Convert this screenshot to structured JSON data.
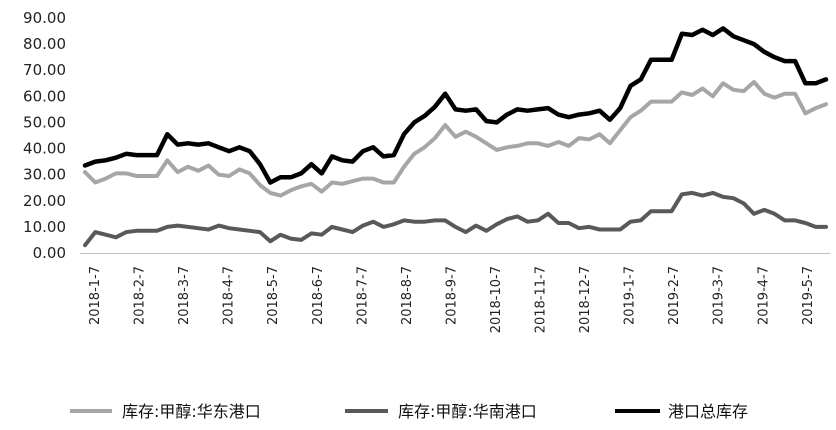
{
  "chart_data": {
    "type": "line",
    "ylim": [
      0,
      90
    ],
    "y_ticks": [
      "0.00",
      "10.00",
      "20.00",
      "30.00",
      "40.00",
      "50.00",
      "60.00",
      "70.00",
      "80.00",
      "90.00"
    ],
    "x_ticks": [
      "2018-1-7",
      "2018-2-7",
      "2018-3-7",
      "2018-4-7",
      "2018-5-7",
      "2018-6-7",
      "2018-7-7",
      "2018-8-7",
      "2018-9-7",
      "2018-10-7",
      "2018-11-7",
      "2018-12-7",
      "2019-1-7",
      "2019-2-7",
      "2019-3-7",
      "2019-4-7",
      "2019-5-7"
    ],
    "grid": false,
    "legend_position": "bottom",
    "series": [
      {
        "name": "库存:甲醇:华东港口",
        "color": "#a6a6a6",
        "values": [
          31,
          27,
          28.5,
          30.5,
          30.5,
          29.5,
          29.5,
          29.5,
          35.5,
          31,
          33,
          31.5,
          33.5,
          30,
          29.5,
          32,
          30.5,
          26,
          23,
          22,
          24,
          25.5,
          26.5,
          23.5,
          27,
          26.5,
          27.5,
          28.5,
          28.5,
          27,
          27,
          33,
          38,
          40.5,
          44,
          49,
          44.5,
          46.5,
          44.5,
          42,
          39.5,
          40.5,
          41,
          42,
          42,
          41,
          42.5,
          41,
          44,
          43.5,
          45.5,
          42,
          47,
          52,
          54.5,
          58,
          58,
          58,
          61.5,
          60.5,
          63,
          60,
          65,
          62.5,
          62,
          65.5,
          61,
          59.5,
          61,
          61,
          53.5,
          55.5,
          57
        ]
      },
      {
        "name": "库存:甲醇:华南港口",
        "color": "#595959",
        "values": [
          3,
          8,
          7,
          6,
          8,
          8.5,
          8.5,
          8.5,
          10,
          10.5,
          10,
          9.5,
          9,
          10.5,
          9.5,
          9,
          8.5,
          8,
          4.5,
          7,
          5.5,
          5,
          7.5,
          7,
          10,
          9,
          8,
          10.5,
          12,
          10,
          11,
          12.5,
          12,
          12,
          12.5,
          12.5,
          10,
          8,
          10.5,
          8.5,
          11,
          13,
          14,
          12,
          12.5,
          15,
          11.5,
          11.5,
          9.5,
          10,
          9,
          9,
          9,
          12,
          12.5,
          16,
          16,
          16,
          22.5,
          23,
          22,
          23,
          21.5,
          21,
          19,
          15,
          16.5,
          15,
          12.5,
          12.5,
          11.5,
          10,
          10
        ]
      },
      {
        "name": "港口总库存",
        "color": "#000000",
        "values": [
          33.5,
          35,
          35.5,
          36.5,
          38,
          37.5,
          37.5,
          37.5,
          45.5,
          41.5,
          42,
          41.5,
          42,
          40.5,
          39,
          40.5,
          39,
          34,
          27,
          29,
          29,
          30.5,
          34,
          30.5,
          37,
          35.5,
          35,
          39,
          40.5,
          37,
          37.5,
          45.5,
          50,
          52.5,
          56,
          61,
          55,
          54.5,
          55,
          50.5,
          50,
          53,
          55,
          54.5,
          55,
          55.5,
          53,
          52,
          53,
          53.5,
          54.5,
          51,
          55.5,
          64,
          66.5,
          74,
          74,
          74,
          84,
          83.5,
          85.5,
          83.5,
          86,
          83,
          81.5,
          80,
          77,
          75,
          73.5,
          73.5,
          65,
          65,
          66.5
        ]
      }
    ]
  }
}
